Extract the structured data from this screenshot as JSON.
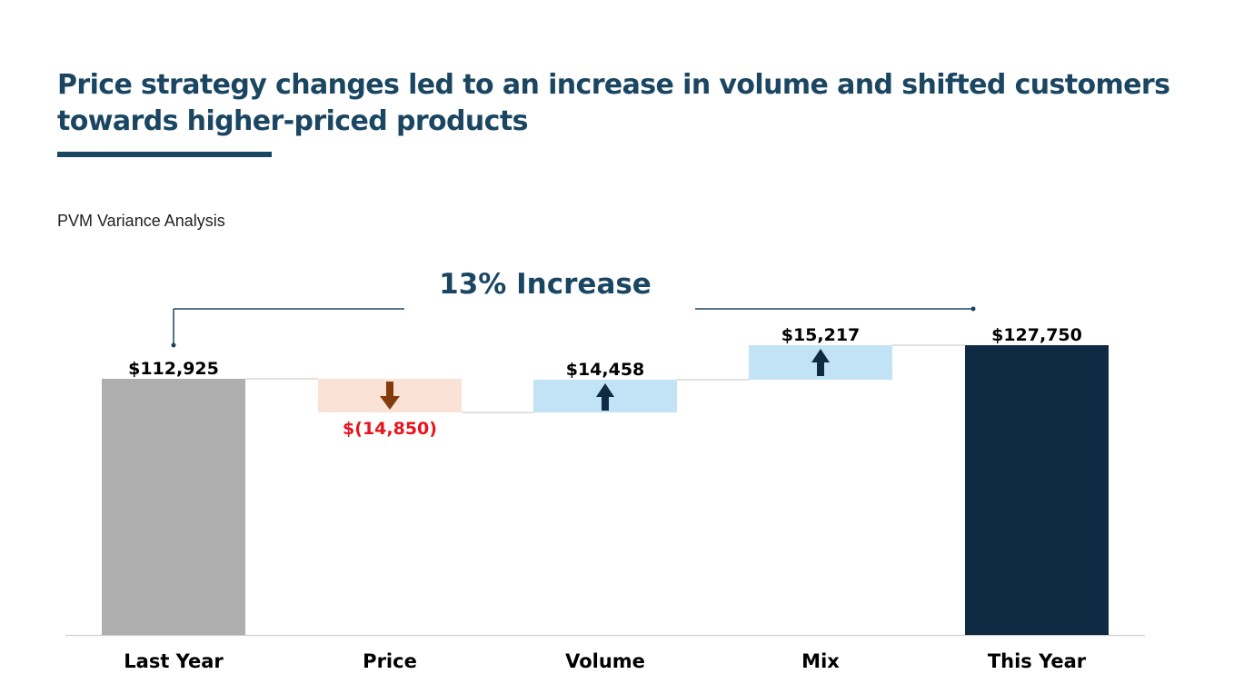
{
  "slide": {
    "title": "Price strategy changes led to an increase in volume and shifted customers towards higher-priced products",
    "subtitle": "PVM Variance Analysis",
    "callout": "13% Increase"
  },
  "colors": {
    "title": "#1b4662",
    "total_start": "#aeaeae",
    "total_end": "#0f2a43",
    "decrease_fill": "#fbe2d6",
    "decrease_arrow": "#843c0c",
    "increase_fill": "#c2e3f5",
    "increase_arrow": "#0f2a43",
    "negative_label": "#e8141b"
  },
  "chart_data": {
    "type": "waterfall",
    "title": "PVM Variance Analysis",
    "categories": [
      "Last Year",
      "Price",
      "Volume",
      "Mix",
      "This Year"
    ],
    "values": [
      112925,
      -14850,
      14458,
      15217,
      127750
    ],
    "kinds": [
      "total",
      "decrease",
      "increase",
      "increase",
      "total"
    ],
    "labels": [
      "$112,925",
      "$(14,850)",
      "$14,458",
      "$15,217",
      "$127,750"
    ],
    "annotation": "13% Increase",
    "ylim": [
      0,
      127750
    ],
    "grid": false,
    "legend": "none"
  }
}
